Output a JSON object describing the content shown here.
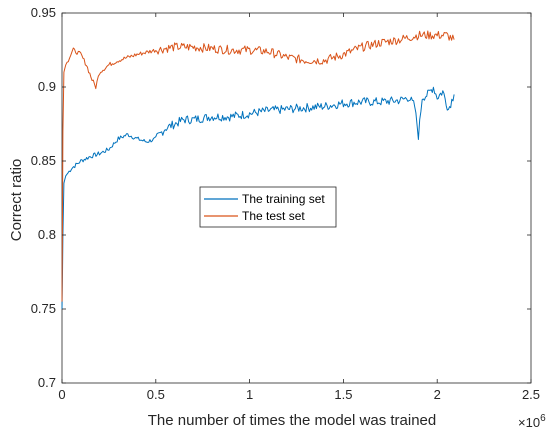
{
  "chart_data": {
    "type": "line",
    "xlabel": "The number of times the model was trained",
    "ylabel": "Correct ratio",
    "x_multiplier_label": "×10",
    "x_multiplier_exp": "6",
    "xlim": [
      0,
      2.5
    ],
    "ylim": [
      0.7,
      0.95
    ],
    "x_ticks": [
      0,
      0.5,
      1,
      1.5,
      2,
      2.5
    ],
    "x_tick_labels": [
      "0",
      "0.5",
      "1",
      "1.5",
      "2",
      "2.5"
    ],
    "y_ticks": [
      0.7,
      0.75,
      0.8,
      0.85,
      0.9,
      0.95
    ],
    "y_tick_labels": [
      "0.7",
      "0.75",
      "0.8",
      "0.85",
      "0.9",
      "0.95"
    ],
    "grid": false,
    "legend_position": "center",
    "series": [
      {
        "name": "The training set",
        "color": "#0072BD",
        "points": [
          [
            0,
            0.75
          ],
          [
            0.005,
            0.8
          ],
          [
            0.01,
            0.835
          ],
          [
            0.02,
            0.84
          ],
          [
            0.05,
            0.845
          ],
          [
            0.08,
            0.848
          ],
          [
            0.1,
            0.85
          ],
          [
            0.15,
            0.853
          ],
          [
            0.2,
            0.855
          ],
          [
            0.25,
            0.858
          ],
          [
            0.3,
            0.865
          ],
          [
            0.35,
            0.868
          ],
          [
            0.4,
            0.865
          ],
          [
            0.45,
            0.863
          ],
          [
            0.5,
            0.865
          ],
          [
            0.55,
            0.872
          ],
          [
            0.6,
            0.875
          ],
          [
            0.65,
            0.878
          ],
          [
            0.7,
            0.878
          ],
          [
            0.8,
            0.88
          ],
          [
            0.9,
            0.88
          ],
          [
            1.0,
            0.882
          ],
          [
            1.1,
            0.884
          ],
          [
            1.2,
            0.885
          ],
          [
            1.3,
            0.886
          ],
          [
            1.4,
            0.887
          ],
          [
            1.5,
            0.889
          ],
          [
            1.6,
            0.89
          ],
          [
            1.7,
            0.89
          ],
          [
            1.8,
            0.891
          ],
          [
            1.85,
            0.893
          ],
          [
            1.88,
            0.887
          ],
          [
            1.9,
            0.867
          ],
          [
            1.92,
            0.893
          ],
          [
            1.95,
            0.895
          ],
          [
            1.98,
            0.9
          ],
          [
            2.0,
            0.893
          ],
          [
            2.03,
            0.897
          ],
          [
            2.06,
            0.885
          ],
          [
            2.09,
            0.895
          ]
        ]
      },
      {
        "name": "The test set",
        "color": "#D95319",
        "points": [
          [
            0,
            0.755
          ],
          [
            0.005,
            0.87
          ],
          [
            0.01,
            0.91
          ],
          [
            0.02,
            0.915
          ],
          [
            0.04,
            0.92
          ],
          [
            0.06,
            0.925
          ],
          [
            0.1,
            0.922
          ],
          [
            0.13,
            0.915
          ],
          [
            0.16,
            0.905
          ],
          [
            0.18,
            0.9
          ],
          [
            0.2,
            0.91
          ],
          [
            0.25,
            0.915
          ],
          [
            0.3,
            0.918
          ],
          [
            0.35,
            0.92
          ],
          [
            0.4,
            0.922
          ],
          [
            0.5,
            0.925
          ],
          [
            0.55,
            0.926
          ],
          [
            0.6,
            0.927
          ],
          [
            0.7,
            0.927
          ],
          [
            0.8,
            0.926
          ],
          [
            0.9,
            0.925
          ],
          [
            1.0,
            0.925
          ],
          [
            1.1,
            0.924
          ],
          [
            1.2,
            0.92
          ],
          [
            1.3,
            0.918
          ],
          [
            1.4,
            0.918
          ],
          [
            1.5,
            0.922
          ],
          [
            1.6,
            0.927
          ],
          [
            1.7,
            0.93
          ],
          [
            1.8,
            0.932
          ],
          [
            1.9,
            0.935
          ],
          [
            2.0,
            0.935
          ],
          [
            2.05,
            0.935
          ],
          [
            2.09,
            0.932
          ]
        ]
      }
    ]
  }
}
